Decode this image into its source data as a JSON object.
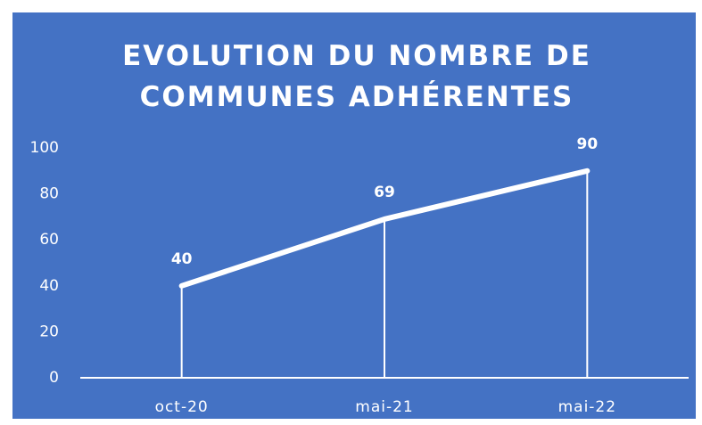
{
  "chart_data": {
    "type": "line",
    "title": "EVOLUTION DU NOMBRE DE COMMUNES ADHÉRENTES",
    "categories": [
      "oct-20",
      "mai-21",
      "mai-22"
    ],
    "values": [
      40,
      69,
      90
    ],
    "color": "#ffffff",
    "background": "#4472c4",
    "ylim": [
      0,
      100
    ],
    "yticks": [
      0,
      20,
      40,
      60,
      80,
      100
    ],
    "grid": false,
    "drop_lines": true,
    "data_labels": true
  }
}
